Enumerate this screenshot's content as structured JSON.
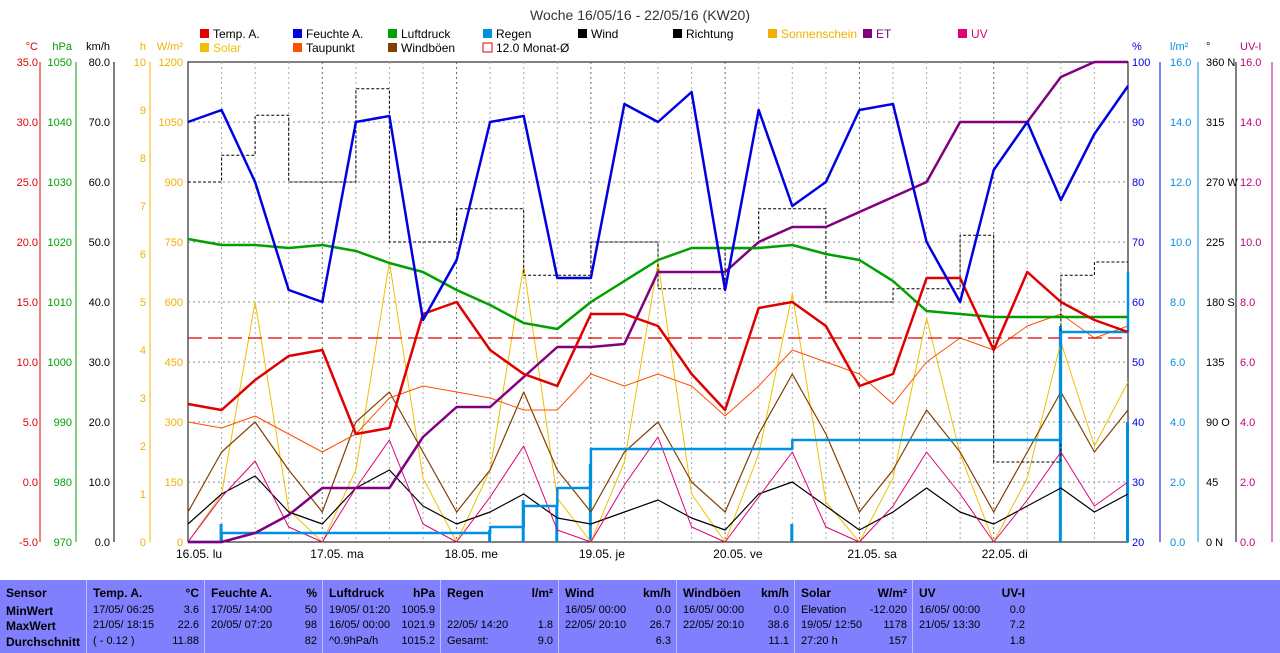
{
  "title": "Woche 16/05/16 - 22/05/16 (KW20)",
  "legend": [
    {
      "label": "Temp. A.",
      "color": "#e00000"
    },
    {
      "label": "Feuchte A.",
      "color": "#0000e0"
    },
    {
      "label": "Luftdruck",
      "color": "#00a000"
    },
    {
      "label": "Regen",
      "color": "#0090e0"
    },
    {
      "label": "Wind",
      "color": "#000000"
    },
    {
      "label": "Richtung",
      "color": "#000000"
    },
    {
      "label": "Sonnenschein",
      "color": "#f0b000"
    },
    {
      "label": "ET",
      "color": "#800080"
    },
    {
      "label": "UV",
      "color": "#e0007a"
    },
    {
      "label": "Solar",
      "color": "#f0c000"
    },
    {
      "label": "Taupunkt",
      "color": "#ff5000"
    },
    {
      "label": "Windböen",
      "color": "#804000"
    },
    {
      "label": "12.0 Monat-Ø",
      "color": "#e00000"
    }
  ],
  "axes": {
    "temp": {
      "unit": "°C",
      "ticks": [
        "35.0",
        "30.0",
        "25.0",
        "20.0",
        "15.0",
        "10.0",
        "5.0",
        "0.0",
        "-5.0"
      ],
      "color": "#e00000"
    },
    "press": {
      "unit": "hPa",
      "ticks": [
        "1050",
        "1040",
        "1030",
        "1020",
        "1010",
        "1000",
        "990",
        "980",
        "970"
      ],
      "color": "#00a000"
    },
    "wind": {
      "unit": "km/h",
      "ticks": [
        "80.0",
        "70.0",
        "60.0",
        "50.0",
        "40.0",
        "30.0",
        "20.0",
        "10.0",
        "0.0"
      ],
      "color": "#000000"
    },
    "hours": {
      "unit": "h",
      "ticks": [
        "10",
        "9",
        "8",
        "7",
        "6",
        "5",
        "4",
        "3",
        "2",
        "1",
        "0"
      ],
      "color": "#f0b000"
    },
    "solar": {
      "unit": "W/m²",
      "ticks": [
        "1200",
        "1050",
        "900",
        "750",
        "600",
        "450",
        "300",
        "150",
        "0"
      ],
      "color": "#f0b000"
    },
    "hum": {
      "unit": "%",
      "ticks": [
        "100",
        "90",
        "80",
        "70",
        "60",
        "50",
        "40",
        "30",
        "20"
      ],
      "color": "#0000e0"
    },
    "rain": {
      "unit": "l/m²",
      "ticks": [
        "16.0",
        "14.0",
        "12.0",
        "10.0",
        "8.0",
        "6.0",
        "4.0",
        "2.0",
        "0.0"
      ],
      "color": "#0090e0"
    },
    "dir": {
      "unit": "°",
      "ticks": [
        "360 N",
        "315",
        "270 W",
        "225",
        "180 S",
        "135",
        "90 O",
        "45",
        "0 N"
      ],
      "color": "#000000"
    },
    "uv": {
      "unit": "UV-I",
      "ticks": [
        "16.0",
        "14.0",
        "12.0",
        "10.0",
        "8.0",
        "6.0",
        "4.0",
        "2.0",
        "0.0"
      ],
      "color": "#c0007a"
    }
  },
  "x_labels": [
    "16.05. lu",
    "17.05. ma",
    "18.05. me",
    "19.05. je",
    "20.05. ve",
    "21.05. sa",
    "22.05. di"
  ],
  "chart_data": {
    "type": "line",
    "title": "Woche 16/05/16 - 22/05/16 (KW20)",
    "x": [
      0,
      0.25,
      0.5,
      0.75,
      1,
      1.25,
      1.5,
      1.75,
      2,
      2.25,
      2.5,
      2.75,
      3,
      3.25,
      3.5,
      3.75,
      4,
      4.25,
      4.5,
      4.75,
      5,
      5.25,
      5.5,
      5.75,
      6,
      6.25,
      6.5,
      6.75,
      7
    ],
    "series": [
      {
        "name": "Temp. A.",
        "unit": "°C",
        "color": "#e00000",
        "values": [
          6.5,
          6,
          8.5,
          10.5,
          11,
          4,
          4.5,
          14,
          15,
          11,
          9,
          8,
          14,
          14,
          13,
          9,
          6,
          14.5,
          15,
          13,
          8,
          9,
          17,
          17,
          11,
          17.5,
          15,
          13.5,
          12.5
        ]
      },
      {
        "name": "Taupunkt",
        "unit": "°C",
        "color": "#ff5000",
        "values": [
          5,
          4.5,
          5.5,
          4,
          2.5,
          4,
          7,
          8,
          7.5,
          7,
          6,
          6,
          9,
          8,
          9,
          8,
          5.5,
          8,
          11,
          10,
          9,
          6.5,
          10,
          12,
          11,
          13,
          14,
          12,
          13
        ]
      },
      {
        "name": "Feuchte A.",
        "unit": "%",
        "color": "#0000e0",
        "values": [
          90,
          92,
          80,
          62,
          60,
          90,
          91,
          57,
          67,
          90,
          91,
          64,
          64,
          93,
          90,
          95,
          62,
          92,
          76,
          80,
          92,
          93,
          70,
          60,
          82,
          90,
          77,
          88,
          96
        ]
      },
      {
        "name": "Luftdruck",
        "unit": "hPa",
        "color": "#00a000",
        "values": [
          1020.5,
          1019.5,
          1019.5,
          1019,
          1019.5,
          1018.5,
          1016.5,
          1015,
          1012,
          1009.5,
          1006.5,
          1005.5,
          1010,
          1013.5,
          1017,
          1019,
          1019,
          1019,
          1019.5,
          1018,
          1017,
          1013.5,
          1008.5,
          1008,
          1007.5,
          1007.5,
          1007.5,
          1007.5,
          1007.5
        ]
      },
      {
        "name": "Regen",
        "unit": "l/m²",
        "color": "#0090e0",
        "values": [
          0,
          0.3,
          0.3,
          0.3,
          0.3,
          0.3,
          0.3,
          0.3,
          0.3,
          0.5,
          1.2,
          1.8,
          3.1,
          3.1,
          3.1,
          3.1,
          3.1,
          3.1,
          3.4,
          3.4,
          3.4,
          3.4,
          3.4,
          3.4,
          3.4,
          3.4,
          7,
          7,
          9
        ]
      },
      {
        "name": "ET",
        "unit": "",
        "color": "#800080",
        "values": [
          0,
          0,
          0.3,
          0.9,
          1.8,
          1.8,
          1.8,
          3.5,
          4.5,
          4.5,
          5.5,
          6.5,
          6.5,
          6.6,
          9,
          9,
          9,
          10,
          10.5,
          10.5,
          11,
          11.5,
          12,
          14,
          14,
          14,
          15.5,
          16,
          16
        ]
      },
      {
        "name": "Wind",
        "unit": "km/h",
        "color": "#000000",
        "values": [
          3,
          8,
          11,
          5,
          3,
          9,
          12,
          6,
          3,
          5,
          8,
          4,
          3,
          5,
          7,
          4,
          2,
          8,
          10,
          6,
          2,
          5,
          9,
          5,
          3,
          6,
          9,
          5,
          8
        ]
      },
      {
        "name": "Windböen",
        "unit": "km/h",
        "color": "#804000",
        "values": [
          5,
          15,
          20,
          12,
          5,
          20,
          25,
          15,
          5,
          12,
          25,
          12,
          5,
          15,
          20,
          10,
          5,
          18,
          28,
          18,
          5,
          12,
          22,
          15,
          5,
          15,
          25,
          15,
          22
        ]
      },
      {
        "name": "Solar",
        "unit": "W/m²",
        "color": "#f0c000",
        "values": [
          0,
          120,
          600,
          80,
          0,
          180,
          700,
          160,
          0,
          180,
          690,
          110,
          0,
          200,
          700,
          120,
          0,
          220,
          620,
          100,
          0,
          160,
          560,
          220,
          0,
          160,
          500,
          240,
          400
        ]
      },
      {
        "name": "UV",
        "unit": "UV-I",
        "color": "#e0007a",
        "values": [
          0,
          1.5,
          2.7,
          0.5,
          0,
          1.8,
          3.4,
          0.6,
          0,
          1.5,
          3.2,
          0.4,
          0,
          1.9,
          3.5,
          0.5,
          0,
          1.5,
          3.0,
          0.5,
          0,
          1.2,
          3.0,
          1.6,
          0,
          1.4,
          3.0,
          1.2,
          2
        ]
      },
      {
        "name": "Richtung",
        "unit": "°",
        "color": "#000000",
        "values": [
          270,
          290,
          320,
          270,
          270,
          340,
          225,
          225,
          250,
          250,
          200,
          200,
          225,
          225,
          190,
          190,
          220,
          250,
          250,
          180,
          180,
          190,
          190,
          230,
          60,
          60,
          200,
          210,
          230
        ]
      },
      {
        "name": "12.0 Monat-Ø",
        "unit": "°C",
        "color": "#e00000",
        "values": [
          12,
          12,
          12,
          12,
          12,
          12,
          12,
          12,
          12,
          12,
          12,
          12,
          12,
          12,
          12,
          12,
          12,
          12,
          12,
          12,
          12,
          12,
          12,
          12,
          12,
          12,
          12,
          12,
          12
        ]
      }
    ],
    "ylim_temp": [
      -5,
      35
    ],
    "ylim_hum": [
      20,
      100
    ],
    "ylim_press": [
      970,
      1050
    ],
    "ylim_rain": [
      0,
      16
    ],
    "ylim_solar": [
      0,
      1200
    ],
    "ylim_wind": [
      0,
      80
    ],
    "ylim_uv": [
      0,
      16
    ],
    "ylim_dir": [
      0,
      360
    ],
    "grid": true
  },
  "stats": {
    "row_labels": [
      "Sensor",
      "MinWert",
      "MaxWert",
      "Durchschnitt"
    ],
    "columns": [
      {
        "head": "Temp. A.",
        "unit": "°C",
        "rows": [
          [
            "17/05/ 06:25",
            "3.6"
          ],
          [
            "21/05/ 18:15",
            "22.6"
          ],
          [
            "( - 0.12 )",
            "11.88"
          ]
        ]
      },
      {
        "head": "Feuchte A.",
        "unit": "%",
        "rows": [
          [
            "17/05/ 14:00",
            "50"
          ],
          [
            "20/05/ 07:20",
            "98"
          ],
          [
            "",
            "82"
          ]
        ]
      },
      {
        "head": "Luftdruck",
        "unit": "hPa",
        "rows": [
          [
            "19/05/ 01:20",
            "1005.9"
          ],
          [
            "16/05/ 00:00",
            "1021.9"
          ],
          [
            "^0.9hPa/h",
            "1015.2"
          ]
        ]
      },
      {
        "head": "Regen",
        "unit": "l/m²",
        "rows": [
          [
            "",
            ""
          ],
          [
            "22/05/ 14:20",
            "1.8"
          ],
          [
            "Gesamt:",
            "9.0"
          ]
        ]
      },
      {
        "head": "Wind",
        "unit": "km/h",
        "rows": [
          [
            "16/05/ 00:00",
            "0.0"
          ],
          [
            "22/05/ 20:10",
            "26.7"
          ],
          [
            "",
            "6.3"
          ]
        ]
      },
      {
        "head": "Windböen",
        "unit": "km/h",
        "rows": [
          [
            "16/05/ 00:00",
            "0.0"
          ],
          [
            "22/05/ 20:10",
            "38.6"
          ],
          [
            "",
            "11.1"
          ]
        ]
      },
      {
        "head": "Solar",
        "unit": "W/m²",
        "rows": [
          [
            "Elevation",
            "-12.020"
          ],
          [
            "19/05/ 12:50",
            "1178"
          ],
          [
            "27:20 h",
            "157"
          ]
        ]
      },
      {
        "head": "UV",
        "unit": "UV-I",
        "rows": [
          [
            "16/05/ 00:00",
            "0.0"
          ],
          [
            "21/05/ 13:30",
            "7.2"
          ],
          [
            "",
            "1.8"
          ]
        ]
      }
    ]
  }
}
